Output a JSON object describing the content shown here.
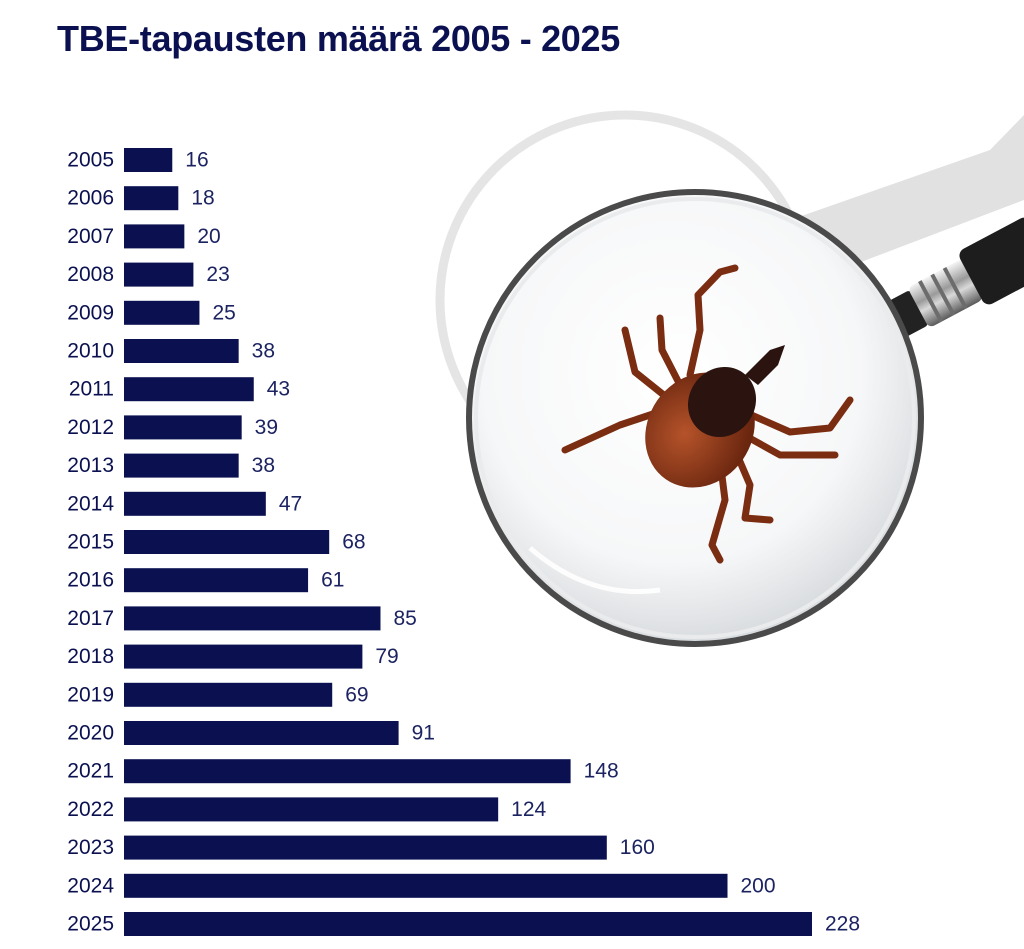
{
  "title": "TBE-tapausten määrä 2005 - 2025",
  "chart_data": {
    "type": "bar",
    "orientation": "horizontal",
    "title": "TBE-tapausten määrä 2005 - 2025",
    "xlabel": "",
    "ylabel": "",
    "categories": [
      "2005",
      "2006",
      "2007",
      "2008",
      "2009",
      "2010",
      "2011",
      "2012",
      "2013",
      "2014",
      "2015",
      "2016",
      "2017",
      "2018",
      "2019",
      "2020",
      "2021",
      "2022",
      "2023",
      "2024",
      "2025"
    ],
    "values": [
      16,
      18,
      20,
      23,
      25,
      38,
      43,
      39,
      38,
      47,
      68,
      61,
      85,
      79,
      69,
      91,
      148,
      124,
      160,
      200,
      228
    ],
    "xlim": [
      0,
      228
    ],
    "grid": false,
    "legend": "none",
    "data_labels": true,
    "bar_color": "#0b1150"
  },
  "illustration": {
    "subject": "tick-under-magnifying-glass-icon"
  }
}
